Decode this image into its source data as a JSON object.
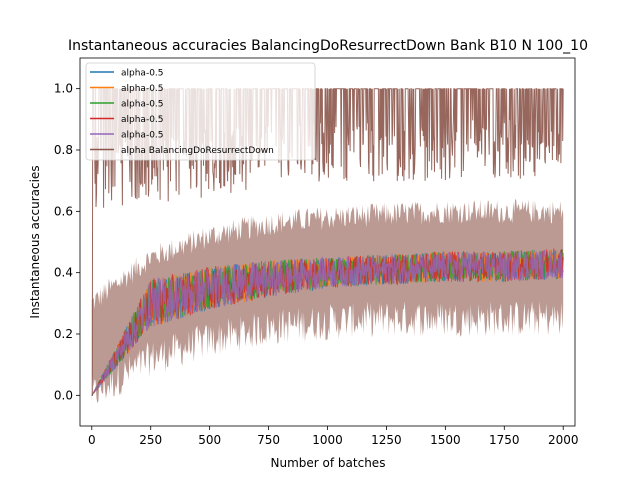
{
  "chart_data": {
    "type": "line",
    "title": "Instantaneous accuracies BalancingDoResurrectDown Bank B10 N 100_10",
    "xlabel": "Number of batches",
    "ylabel": "Instantaneous accuracies",
    "xlim": [
      -50,
      2050
    ],
    "ylim": [
      -0.1,
      1.1
    ],
    "xticks": [
      0,
      250,
      500,
      750,
      1000,
      1250,
      1500,
      1750,
      2000
    ],
    "xtick_labels": [
      "0",
      "250",
      "500",
      "750",
      "1000",
      "1250",
      "1500",
      "1750",
      "2000"
    ],
    "yticks": [
      0.0,
      0.2,
      0.4,
      0.6,
      0.8,
      1.0
    ],
    "ytick_labels": [
      "0.0",
      "0.2",
      "0.4",
      "0.6",
      "0.8",
      "1.0"
    ],
    "grid": false,
    "legend_position": "top-left",
    "n_batches": 2000,
    "series": [
      {
        "name": "alpha-0.5",
        "color": "#1f77b4",
        "mean": [
          0.0,
          0.3,
          0.35,
          0.38,
          0.4,
          0.41,
          0.42,
          0.42,
          0.43
        ],
        "spread": [
          0.0,
          0.08,
          0.07,
          0.06,
          0.05,
          0.05,
          0.05,
          0.05,
          0.05
        ]
      },
      {
        "name": "alpha-0.5",
        "color": "#ff7f0e",
        "mean": [
          0.0,
          0.3,
          0.35,
          0.38,
          0.4,
          0.41,
          0.42,
          0.42,
          0.43
        ],
        "spread": [
          0.0,
          0.08,
          0.07,
          0.06,
          0.05,
          0.05,
          0.05,
          0.05,
          0.05
        ]
      },
      {
        "name": "alpha-0.5",
        "color": "#2ca02c",
        "mean": [
          0.0,
          0.3,
          0.35,
          0.38,
          0.4,
          0.41,
          0.42,
          0.42,
          0.43
        ],
        "spread": [
          0.0,
          0.08,
          0.07,
          0.06,
          0.05,
          0.05,
          0.05,
          0.05,
          0.05
        ]
      },
      {
        "name": "alpha-0.5",
        "color": "#d62728",
        "mean": [
          0.0,
          0.3,
          0.35,
          0.38,
          0.4,
          0.41,
          0.42,
          0.42,
          0.43
        ],
        "spread": [
          0.0,
          0.08,
          0.07,
          0.06,
          0.05,
          0.05,
          0.05,
          0.05,
          0.05
        ]
      },
      {
        "name": "alpha-0.5",
        "color": "#9467bd",
        "mean": [
          0.0,
          0.3,
          0.35,
          0.38,
          0.4,
          0.41,
          0.42,
          0.42,
          0.43
        ],
        "spread": [
          0.0,
          0.08,
          0.07,
          0.06,
          0.05,
          0.05,
          0.05,
          0.05,
          0.05
        ]
      },
      {
        "name": "alpha BalancingDoResurrectDown",
        "color": "#8c564b",
        "mean": [
          0.85,
          0.86,
          0.87,
          0.88,
          0.89,
          0.89,
          0.9,
          0.9,
          0.9
        ],
        "spread": [
          0.1,
          0.1,
          0.09,
          0.08,
          0.08,
          0.08,
          0.08,
          0.08,
          0.08
        ]
      }
    ],
    "band": {
      "color": "#8c564b",
      "upper": [
        0.3,
        0.45,
        0.52,
        0.56,
        0.58,
        0.59,
        0.6,
        0.6,
        0.6
      ],
      "lower": [
        0.0,
        0.12,
        0.18,
        0.22,
        0.24,
        0.25,
        0.25,
        0.25,
        0.25
      ]
    },
    "band_x": [
      0,
      250,
      500,
      750,
      1000,
      1250,
      1500,
      1750,
      2000
    ]
  }
}
